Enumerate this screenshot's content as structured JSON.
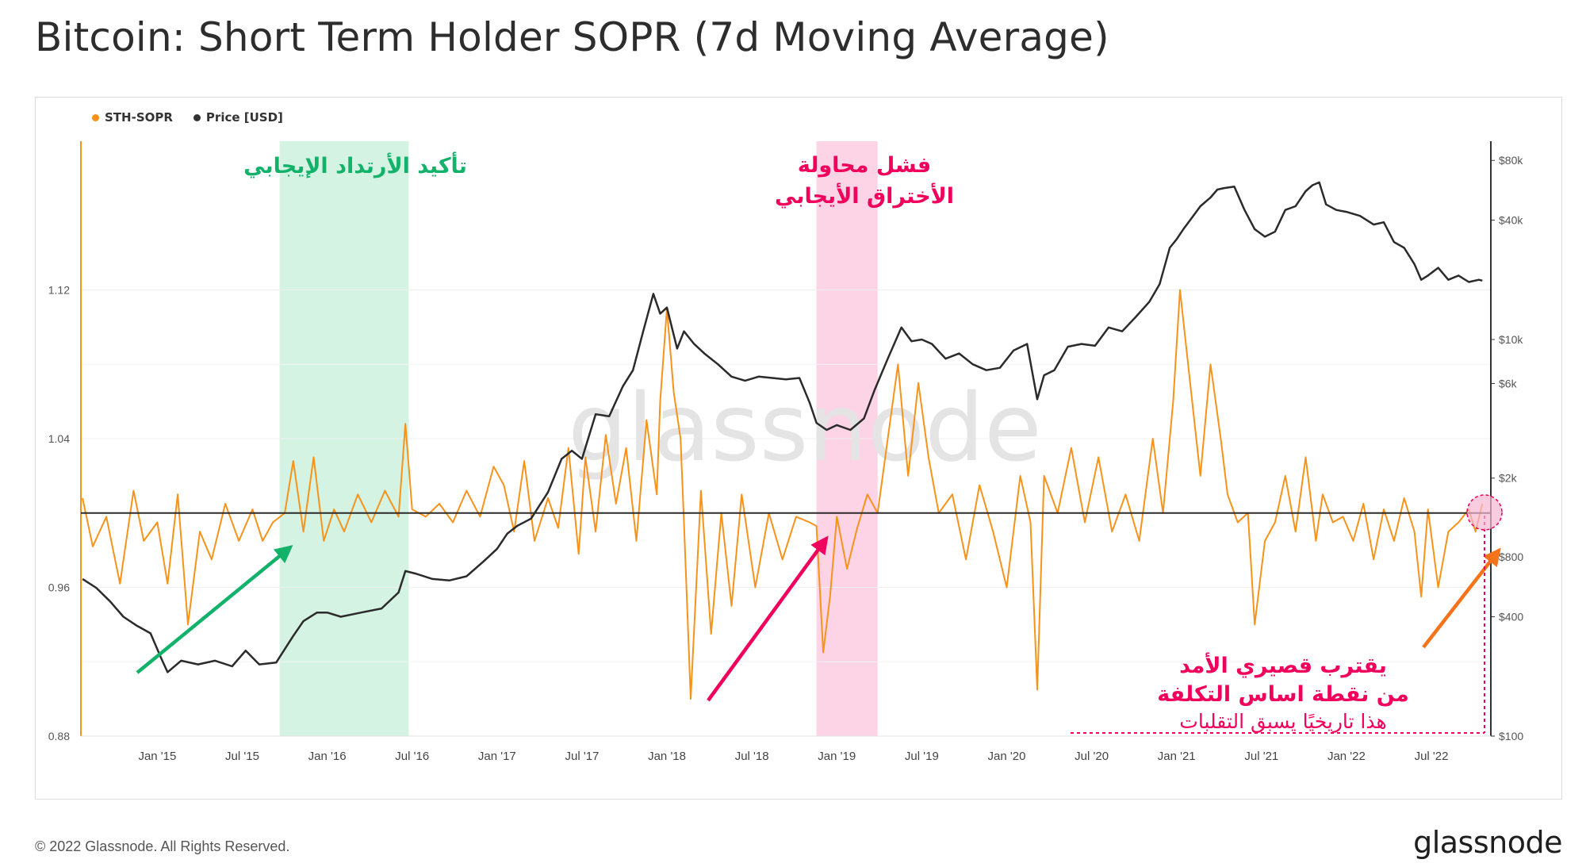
{
  "title": "Bitcoin: Short Term Holder SOPR (7d Moving Average)",
  "footer": "© 2022 Glassnode. All Rights Reserved.",
  "brand": "glassnode",
  "watermark": "glassnode",
  "legend": [
    {
      "label": "STH-SOPR",
      "color": "#f7931a"
    },
    {
      "label": "Price [USD]",
      "color": "#333333"
    }
  ],
  "colors": {
    "sopr": "#f7931a",
    "price": "#2b2b2b",
    "green": "#13b26a",
    "pink": "#f0005c",
    "orange_arrow": "#f7731a",
    "band_green": "#d4f3e3",
    "band_pink": "#fdd3e6"
  },
  "annotations": {
    "green_label": "تأكيد الأرتداد الإيجابي",
    "pink_label_line1": "فشل محاولة",
    "pink_label_line2": "الأختراق  الأيجابي",
    "bottom_line1": "يقترب قصيري الأمد",
    "bottom_line2": "من نقطة اساس التكلفة",
    "bottom_line3": "هذا تاريخيًا يسبق التقلبات"
  },
  "chart_data": {
    "type": "line",
    "title": "Bitcoin: Short Term Holder SOPR (7d Moving Average)",
    "x_range": [
      2014.55,
      2022.85
    ],
    "x_ticks": [
      {
        "label": "Jan '15",
        "x": 2015.0
      },
      {
        "label": "Jul '15",
        "x": 2015.5
      },
      {
        "label": "Jan '16",
        "x": 2016.0
      },
      {
        "label": "Jul '16",
        "x": 2016.5
      },
      {
        "label": "Jan '17",
        "x": 2017.0
      },
      {
        "label": "Jul '17",
        "x": 2017.5
      },
      {
        "label": "Jan '18",
        "x": 2018.0
      },
      {
        "label": "Jul '18",
        "x": 2018.5
      },
      {
        "label": "Jan '19",
        "x": 2019.0
      },
      {
        "label": "Jul '19",
        "x": 2019.5
      },
      {
        "label": "Jan '20",
        "x": 2020.0
      },
      {
        "label": "Jul '20",
        "x": 2020.5
      },
      {
        "label": "Jan '21",
        "x": 2021.0
      },
      {
        "label": "Jul '21",
        "x": 2021.5
      },
      {
        "label": "Jan '22",
        "x": 2022.0
      },
      {
        "label": "Jul '22",
        "x": 2022.5
      }
    ],
    "y_left": {
      "label": "STH-SOPR",
      "range": [
        0.88,
        1.2
      ],
      "ticks": [
        "1.12",
        "1.04",
        "0.96",
        "0.88"
      ],
      "tick_values": [
        1.12,
        1.04,
        0.96,
        0.88
      ]
    },
    "y_right": {
      "label": "Price [USD]",
      "scale": "log",
      "range": [
        100,
        100000
      ],
      "ticks": [
        "$80k",
        "$40k",
        "$10k",
        "$6k",
        "$2k",
        "$800",
        "$400",
        "$100"
      ],
      "tick_values": [
        80000,
        40000,
        10000,
        6000,
        2000,
        800,
        400,
        100
      ]
    },
    "reference_line": {
      "axis": "left",
      "value": 1.0
    },
    "bands": [
      {
        "from": 2015.72,
        "to": 2016.48,
        "color": "green"
      },
      {
        "from": 2018.88,
        "to": 2019.24,
        "color": "pink"
      }
    ],
    "series": [
      {
        "name": "STH-SOPR",
        "axis": "left",
        "color": "#f7931a",
        "x": [
          2014.56,
          2014.62,
          2014.7,
          2014.78,
          2014.86,
          2014.92,
          2015.0,
          2015.06,
          2015.12,
          2015.18,
          2015.25,
          2015.32,
          2015.4,
          2015.48,
          2015.56,
          2015.62,
          2015.68,
          2015.75,
          2015.8,
          2015.86,
          2015.92,
          2015.98,
          2016.04,
          2016.1,
          2016.18,
          2016.26,
          2016.34,
          2016.42,
          2016.46,
          2016.5,
          2016.58,
          2016.66,
          2016.74,
          2016.82,
          2016.9,
          2016.98,
          2017.04,
          2017.1,
          2017.16,
          2017.22,
          2017.3,
          2017.36,
          2017.42,
          2017.48,
          2017.52,
          2017.58,
          2017.64,
          2017.7,
          2017.76,
          2017.82,
          2017.88,
          2017.94,
          2017.96,
          2018.0,
          2018.04,
          2018.08,
          2018.1,
          2018.14,
          2018.2,
          2018.26,
          2018.32,
          2018.38,
          2018.44,
          2018.52,
          2018.6,
          2018.68,
          2018.76,
          2018.84,
          2018.88,
          2018.92,
          2018.96,
          2019.0,
          2019.06,
          2019.12,
          2019.18,
          2019.24,
          2019.3,
          2019.36,
          2019.42,
          2019.48,
          2019.54,
          2019.6,
          2019.68,
          2019.76,
          2019.84,
          2019.92,
          2020.0,
          2020.08,
          2020.14,
          2020.18,
          2020.22,
          2020.3,
          2020.38,
          2020.46,
          2020.54,
          2020.62,
          2020.7,
          2020.78,
          2020.86,
          2020.92,
          2020.98,
          2021.02,
          2021.08,
          2021.14,
          2021.2,
          2021.26,
          2021.3,
          2021.36,
          2021.42,
          2021.46,
          2021.52,
          2021.58,
          2021.64,
          2021.7,
          2021.76,
          2021.82,
          2021.86,
          2021.92,
          2021.98,
          2022.04,
          2022.1,
          2022.16,
          2022.22,
          2022.28,
          2022.34,
          2022.4,
          2022.44,
          2022.48,
          2022.54,
          2022.6,
          2022.66,
          2022.72,
          2022.76,
          2022.8
        ],
        "values": [
          1.008,
          0.982,
          0.998,
          0.962,
          1.012,
          0.985,
          0.995,
          0.962,
          1.01,
          0.94,
          0.99,
          0.975,
          1.005,
          0.985,
          1.002,
          0.985,
          0.995,
          1.0,
          1.028,
          0.99,
          1.03,
          0.985,
          1.002,
          0.99,
          1.01,
          0.995,
          1.012,
          0.998,
          1.048,
          1.002,
          0.998,
          1.005,
          0.995,
          1.012,
          0.998,
          1.025,
          1.015,
          0.99,
          1.028,
          0.985,
          1.008,
          0.992,
          1.035,
          0.978,
          1.03,
          0.99,
          1.042,
          1.005,
          1.035,
          0.985,
          1.05,
          1.01,
          1.06,
          1.11,
          1.065,
          1.04,
          0.995,
          0.9,
          1.012,
          0.935,
          1.0,
          0.95,
          1.01,
          0.96,
          1.0,
          0.975,
          0.998,
          0.995,
          0.993,
          0.925,
          0.955,
          0.998,
          0.97,
          0.992,
          1.01,
          1.0,
          1.04,
          1.08,
          1.02,
          1.07,
          1.03,
          1.0,
          1.01,
          0.975,
          1.015,
          0.99,
          0.96,
          1.02,
          0.995,
          0.905,
          1.02,
          1.0,
          1.035,
          0.995,
          1.03,
          0.99,
          1.01,
          0.985,
          1.04,
          1.0,
          1.06,
          1.12,
          1.07,
          1.02,
          1.08,
          1.04,
          1.01,
          0.995,
          1.0,
          0.94,
          0.985,
          0.995,
          1.02,
          0.99,
          1.03,
          0.985,
          1.01,
          0.995,
          0.998,
          0.985,
          1.005,
          0.975,
          1.002,
          0.985,
          1.008,
          0.99,
          0.955,
          1.002,
          0.96,
          0.99,
          0.995,
          1.002,
          0.99,
          1.005
        ]
      },
      {
        "name": "Price [USD]",
        "axis": "right",
        "color": "#2b2b2b",
        "x": [
          2014.56,
          2014.64,
          2014.72,
          2014.8,
          2014.88,
          2014.96,
          2015.02,
          2015.06,
          2015.14,
          2015.24,
          2015.34,
          2015.44,
          2015.52,
          2015.6,
          2015.7,
          2015.8,
          2015.86,
          2015.94,
          2016.0,
          2016.08,
          2016.2,
          2016.32,
          2016.42,
          2016.46,
          2016.52,
          2016.62,
          2016.72,
          2016.82,
          2016.92,
          2017.0,
          2017.06,
          2017.12,
          2017.2,
          2017.3,
          2017.38,
          2017.44,
          2017.5,
          2017.58,
          2017.66,
          2017.74,
          2017.8,
          2017.86,
          2017.92,
          2017.96,
          2018.0,
          2018.06,
          2018.1,
          2018.16,
          2018.22,
          2018.3,
          2018.38,
          2018.46,
          2018.54,
          2018.62,
          2018.7,
          2018.78,
          2018.84,
          2018.88,
          2018.94,
          2019.0,
          2019.08,
          2019.16,
          2019.22,
          2019.3,
          2019.38,
          2019.44,
          2019.5,
          2019.56,
          2019.64,
          2019.72,
          2019.8,
          2019.88,
          2019.96,
          2020.04,
          2020.12,
          2020.18,
          2020.22,
          2020.28,
          2020.36,
          2020.44,
          2020.52,
          2020.6,
          2020.68,
          2020.76,
          2020.84,
          2020.9,
          2020.96,
          2021.0,
          2021.04,
          2021.08,
          2021.14,
          2021.2,
          2021.24,
          2021.28,
          2021.34,
          2021.4,
          2021.46,
          2021.52,
          2021.58,
          2021.64,
          2021.7,
          2021.76,
          2021.8,
          2021.84,
          2021.88,
          2021.94,
          2022.0,
          2022.08,
          2022.16,
          2022.22,
          2022.28,
          2022.34,
          2022.4,
          2022.44,
          2022.48,
          2022.54,
          2022.6,
          2022.66,
          2022.72,
          2022.78,
          2022.8
        ],
        "values": [
          620,
          560,
          480,
          400,
          360,
          330,
          250,
          210,
          240,
          230,
          240,
          225,
          270,
          230,
          235,
          320,
          380,
          420,
          420,
          400,
          420,
          440,
          530,
          680,
          660,
          620,
          610,
          640,
          760,
          880,
          1050,
          1150,
          1250,
          1700,
          2500,
          2750,
          2500,
          4200,
          4100,
          5800,
          7000,
          11000,
          17000,
          13500,
          14500,
          9000,
          11000,
          9500,
          8500,
          7500,
          6500,
          6200,
          6500,
          6400,
          6300,
          6400,
          4800,
          3800,
          3500,
          3700,
          3500,
          4000,
          5500,
          8000,
          11500,
          9800,
          10000,
          9500,
          8000,
          8500,
          7500,
          7000,
          7200,
          8800,
          9500,
          5000,
          6600,
          7000,
          9200,
          9500,
          9300,
          11500,
          11000,
          13000,
          15500,
          19000,
          29000,
          32000,
          36000,
          40000,
          47000,
          52000,
          57000,
          58000,
          59000,
          45000,
          36000,
          33000,
          35000,
          45000,
          47000,
          56000,
          60000,
          62000,
          48000,
          45000,
          44000,
          42000,
          38000,
          39000,
          31000,
          29000,
          24000,
          20000,
          21000,
          23000,
          20000,
          21000,
          19500,
          20000,
          19800
        ]
      }
    ]
  }
}
